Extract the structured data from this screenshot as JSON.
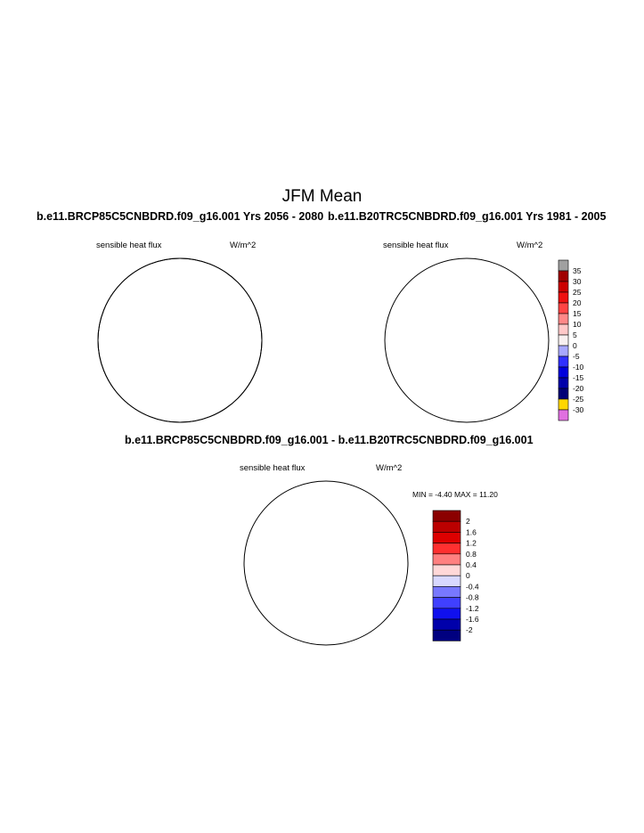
{
  "title": "JFM Mean",
  "panels": [
    {
      "case_title": "b.e11.BRCP85C5CNBDRD.f09_g16.001  Yrs 2056 - 2080",
      "variable": "sensible heat flux",
      "units": "W/m^2"
    },
    {
      "case_title": "b.e11.B20TRC5CNBDRD.f09_g16.001  Yrs 1981 - 2005",
      "variable": "sensible heat flux",
      "units": "W/m^2"
    }
  ],
  "difference_panel": {
    "case_title": "b.e11.BRCP85C5CNBDRD.f09_g16.001 - b.e11.B20TRC5CNBDRD.f09_g16.001",
    "variable": "sensible heat flux",
    "units": "W/m^2",
    "min_label": "MIN =",
    "min_value": "-4.40",
    "max_label": "MAX =",
    "max_value": "11.20"
  },
  "colorbar_mean": {
    "labels": [
      "35",
      "30",
      "25",
      "20",
      "15",
      "10",
      "5",
      "0",
      "-5",
      "-10",
      "-15",
      "-20",
      "-25",
      "-30"
    ],
    "colors": [
      "#a0a0a0",
      "#a00000",
      "#cc0000",
      "#ee1111",
      "#ff4444",
      "#ff8888",
      "#ffc8c8",
      "#f8f0f0",
      "#a8a8ff",
      "#3030ff",
      "#0000dd",
      "#0000aa",
      "#000077",
      "#ffd700",
      "#e070e0"
    ]
  },
  "colorbar_diff": {
    "labels": [
      "2",
      "1.6",
      "1.2",
      "0.8",
      "0.4",
      "0",
      "-0.4",
      "-0.8",
      "-1.2",
      "-1.6",
      "-2"
    ],
    "colors": [
      "#8b0000",
      "#bb0000",
      "#dd0000",
      "#ff3030",
      "#ff8080",
      "#ffd8d8",
      "#d8d8ff",
      "#7878ff",
      "#4040ff",
      "#1010ee",
      "#0000aa",
      "#000080"
    ]
  }
}
